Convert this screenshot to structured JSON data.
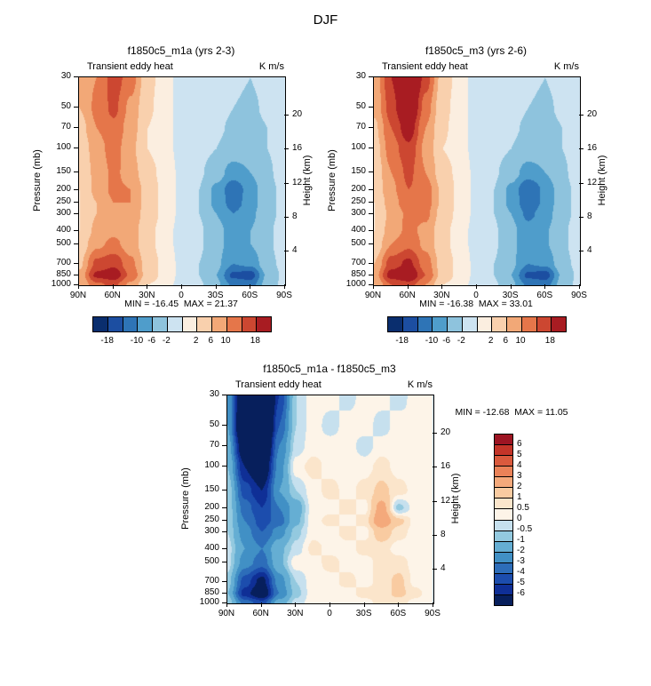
{
  "title": "DJF",
  "axes": {
    "pressure_label": "Pressure (mb)",
    "height_label": "Height (km)",
    "pressure_ticks": [
      30,
      50,
      70,
      100,
      150,
      200,
      250,
      300,
      400,
      500,
      700,
      850,
      1000
    ],
    "height_ticks": [
      20,
      16,
      12,
      8,
      4
    ],
    "lat_ticks": [
      "90N",
      "60N",
      "30N",
      "0",
      "30S",
      "60S",
      "90S"
    ],
    "lat_values": [
      90,
      60,
      30,
      0,
      -30,
      -60,
      -90
    ]
  },
  "colormaps": {
    "main": {
      "levels": [
        -18,
        -14,
        -10,
        -6,
        -2,
        0,
        2,
        6,
        10,
        14,
        18
      ],
      "colors": [
        "#0a2e6e",
        "#1c4ea1",
        "#2e74b6",
        "#4f9dcb",
        "#8ec3dd",
        "#cde3f1",
        "#fbeee0",
        "#f9d0ad",
        "#f2a877",
        "#e5764a",
        "#cc4731",
        "#a81c22"
      ],
      "tick_labels": [
        "-18",
        "-10",
        "-6",
        "-2",
        "2",
        "6",
        "10",
        "18"
      ]
    },
    "diff": {
      "levels": [
        -6,
        -5,
        -4,
        -3,
        -2,
        -1,
        -0.5,
        0,
        0.5,
        1,
        2,
        3,
        4,
        5,
        6
      ],
      "colors": [
        "#071f5c",
        "#0f2f96",
        "#1c4dad",
        "#2d6db9",
        "#4190c5",
        "#65aed3",
        "#93c9df",
        "#c6e0ee",
        "#fdf4e8",
        "#fbe5cb",
        "#f9cba1",
        "#f4a97b",
        "#ea8258",
        "#da5a3d",
        "#c43529",
        "#9d1523"
      ],
      "tick_labels": [
        "6",
        "5",
        "4",
        "3",
        "2",
        "1",
        "0.5",
        "0",
        "-0.5",
        "-1",
        "-2",
        "-3",
        "-4",
        "-5",
        "-6"
      ]
    }
  },
  "chart_data": [
    {
      "type": "heatmap",
      "title": "f1850c5_m1a (yrs 2-3)",
      "field": "Transient eddy heat",
      "units": "K m/s",
      "stats": "MIN = -16.45  MAX = 21.37",
      "colormap": "main",
      "xlabel": "latitude",
      "ylabel": "Pressure (mb)",
      "x": [
        90,
        75,
        60,
        45,
        30,
        15,
        0,
        -15,
        -30,
        -45,
        -60,
        -75,
        -90
      ],
      "y": [
        30,
        50,
        70,
        100,
        150,
        200,
        250,
        300,
        400,
        500,
        700,
        850,
        1000
      ],
      "values": [
        [
          7,
          10,
          16,
          12,
          3,
          0.5,
          -0.5,
          -0.5,
          -1,
          -1.5,
          -2,
          -1,
          -0.5
        ],
        [
          6,
          11,
          15,
          9,
          2.5,
          0.5,
          -0.5,
          -0.5,
          -1,
          -2,
          -2.5,
          -1.5,
          -0.5
        ],
        [
          4,
          10,
          13,
          8,
          2,
          0.5,
          -0.5,
          -1,
          -1.5,
          -2.5,
          -3,
          -2,
          -0.5
        ],
        [
          3,
          8,
          12,
          7,
          2,
          0.5,
          -0.5,
          -1,
          -2,
          -3.5,
          -4,
          -2,
          -0.5
        ],
        [
          3,
          7,
          11,
          8,
          3,
          1,
          -0.5,
          -1.5,
          -4,
          -8,
          -6,
          -2.5,
          -0.5
        ],
        [
          2,
          7,
          11,
          10,
          4,
          1,
          -0.5,
          -2,
          -7,
          -13,
          -8,
          -3,
          -1
        ],
        [
          2,
          6,
          10,
          10,
          4,
          1,
          -0.5,
          -2,
          -7,
          -12,
          -8,
          -3,
          -1
        ],
        [
          2,
          6,
          9,
          9,
          4,
          1,
          -0.5,
          -2,
          -6,
          -10,
          -7,
          -3,
          -1
        ],
        [
          2,
          7,
          9,
          8,
          3,
          0.5,
          -0.5,
          -1.5,
          -4.5,
          -8,
          -6,
          -2.5,
          -0.5
        ],
        [
          3,
          9,
          11,
          8,
          3,
          0.5,
          -0.5,
          -1.5,
          -4.5,
          -8,
          -6,
          -2.5,
          -0.5
        ],
        [
          5,
          15,
          17,
          11,
          4,
          1,
          -0.5,
          -2,
          -5,
          -10,
          -9,
          -3,
          -1
        ],
        [
          7,
          19,
          21,
          13,
          4,
          1,
          -0.5,
          -2,
          -6,
          -15,
          -16,
          -5,
          -1
        ],
        [
          6,
          13,
          15,
          9,
          2,
          0.5,
          -0.5,
          -1.5,
          -5,
          -11,
          -12,
          -4,
          -1
        ]
      ]
    },
    {
      "type": "heatmap",
      "title": "f1850c5_m3 (yrs 2-6)",
      "field": "Transient eddy heat",
      "units": "K m/s",
      "stats": "MIN = -16.38  MAX = 33.01",
      "colormap": "main",
      "xlabel": "latitude",
      "ylabel": "Pressure (mb)",
      "x": [
        90,
        75,
        60,
        45,
        30,
        15,
        0,
        -15,
        -30,
        -45,
        -60,
        -75,
        -90
      ],
      "y": [
        30,
        50,
        70,
        100,
        150,
        200,
        250,
        300,
        400,
        500,
        700,
        850,
        1000
      ],
      "values": [
        [
          7,
          18,
          30,
          16,
          4,
          0.5,
          -0.5,
          -0.5,
          -1,
          -1.5,
          -2,
          -1,
          -0.5
        ],
        [
          7,
          16,
          26,
          12,
          3,
          0.5,
          -0.5,
          -0.5,
          -1,
          -2,
          -2.5,
          -1.5,
          -0.5
        ],
        [
          5,
          14,
          21,
          10,
          2.5,
          0.5,
          -0.5,
          -1,
          -1.5,
          -2.5,
          -3,
          -2,
          -0.5
        ],
        [
          4,
          12,
          17,
          9,
          2,
          0.5,
          -0.5,
          -1,
          -2,
          -3.5,
          -4,
          -2,
          -0.5
        ],
        [
          3,
          10,
          15,
          10,
          3.5,
          1,
          -0.5,
          -1.5,
          -4,
          -8,
          -6,
          -2.5,
          -0.5
        ],
        [
          3,
          9,
          14,
          12,
          5,
          1,
          -0.5,
          -2,
          -7,
          -14,
          -9,
          -3,
          -1
        ],
        [
          2,
          8,
          13,
          12,
          5,
          1,
          -0.5,
          -2,
          -7,
          -13,
          -9,
          -3,
          -1
        ],
        [
          2,
          7,
          11,
          11,
          4,
          1,
          -0.5,
          -2,
          -6,
          -11,
          -8,
          -3,
          -1
        ],
        [
          2,
          8,
          11,
          9,
          3,
          0.5,
          -0.5,
          -1.5,
          -5,
          -8.5,
          -6.5,
          -2.5,
          -0.5
        ],
        [
          3,
          10,
          13,
          9,
          3,
          0.5,
          -0.5,
          -1.5,
          -5,
          -8.5,
          -6.5,
          -2.5,
          -0.5
        ],
        [
          6,
          16,
          19,
          12,
          4,
          1,
          -0.5,
          -2,
          -5,
          -10,
          -9,
          -3,
          -1
        ],
        [
          8,
          20,
          23,
          14,
          4,
          1,
          -0.5,
          -2,
          -6,
          -15,
          -16,
          -5,
          -1
        ],
        [
          6,
          14,
          16,
          10,
          2,
          0.5,
          -0.5,
          -1.5,
          -5,
          -11,
          -12,
          -4,
          -1
        ]
      ]
    },
    {
      "type": "heatmap",
      "title": "f1850c5_m1a - f1850c5_m3",
      "field": "Transient eddy heat",
      "units": "K m/s",
      "stats": "MIN = -12.68  MAX = 11.05",
      "colormap": "diff",
      "xlabel": "latitude",
      "ylabel": "Pressure (mb)",
      "x": [
        90,
        75,
        60,
        45,
        30,
        15,
        0,
        -15,
        -30,
        -45,
        -60,
        -75,
        -90
      ],
      "y": [
        30,
        50,
        70,
        100,
        150,
        200,
        250,
        300,
        400,
        500,
        700,
        850,
        1000
      ],
      "values": [
        [
          -2,
          -9,
          -13,
          -5,
          -0.5,
          0.3,
          0.3,
          -0.3,
          0.3,
          0.3,
          -0.3,
          0.3,
          0
        ],
        [
          -2,
          -10,
          -12,
          -4,
          -0.5,
          0.3,
          -0.3,
          0.3,
          0.3,
          -0.3,
          0.3,
          0,
          0
        ],
        [
          -1.5,
          -8,
          -10,
          -3,
          -0.3,
          0.3,
          0.3,
          0.3,
          -0.3,
          0.3,
          0.3,
          0.3,
          0
        ],
        [
          -1,
          -6,
          -8,
          -2.5,
          0.3,
          0.7,
          0.3,
          0.3,
          0.3,
          0.7,
          0.3,
          0.3,
          0
        ],
        [
          -0.5,
          -4.5,
          -6,
          -2,
          -0.5,
          0.3,
          0.7,
          0.3,
          0.7,
          1.2,
          0.7,
          0.3,
          0
        ],
        [
          -0.5,
          -3.5,
          -5,
          -3,
          -1.5,
          0.3,
          0.3,
          0.7,
          0.3,
          2.5,
          -0.7,
          0.3,
          0
        ],
        [
          -0.5,
          -3,
          -4.5,
          -3.5,
          -1.2,
          0.3,
          0.7,
          0.3,
          0.7,
          3,
          1.2,
          0.3,
          0
        ],
        [
          -0.5,
          -2.5,
          -4,
          -2.5,
          -0.7,
          0.3,
          0.3,
          0.7,
          0.3,
          1.5,
          0.7,
          0.3,
          0
        ],
        [
          -0.3,
          -2,
          -3,
          -1.2,
          -0.3,
          0.7,
          0.3,
          0.3,
          0.7,
          0.7,
          0.3,
          0.3,
          0
        ],
        [
          -0.3,
          -2.5,
          -3.5,
          -1.2,
          0.3,
          0.3,
          0.7,
          0.3,
          0.3,
          0.7,
          0.7,
          0.3,
          0
        ],
        [
          -0.7,
          -4.5,
          -6.5,
          -2.5,
          -0.5,
          0.3,
          0.3,
          0.7,
          0.3,
          0.7,
          1.2,
          0.3,
          0
        ],
        [
          -1,
          -5.5,
          -7.5,
          -3,
          -0.7,
          0.3,
          0.3,
          0.3,
          0.7,
          0.7,
          1.2,
          0.7,
          0
        ],
        [
          -0.5,
          -3.5,
          -4.5,
          -1.5,
          -0.3,
          0.3,
          0.3,
          0.3,
          0.3,
          0.7,
          0.7,
          0.3,
          0
        ]
      ]
    }
  ]
}
